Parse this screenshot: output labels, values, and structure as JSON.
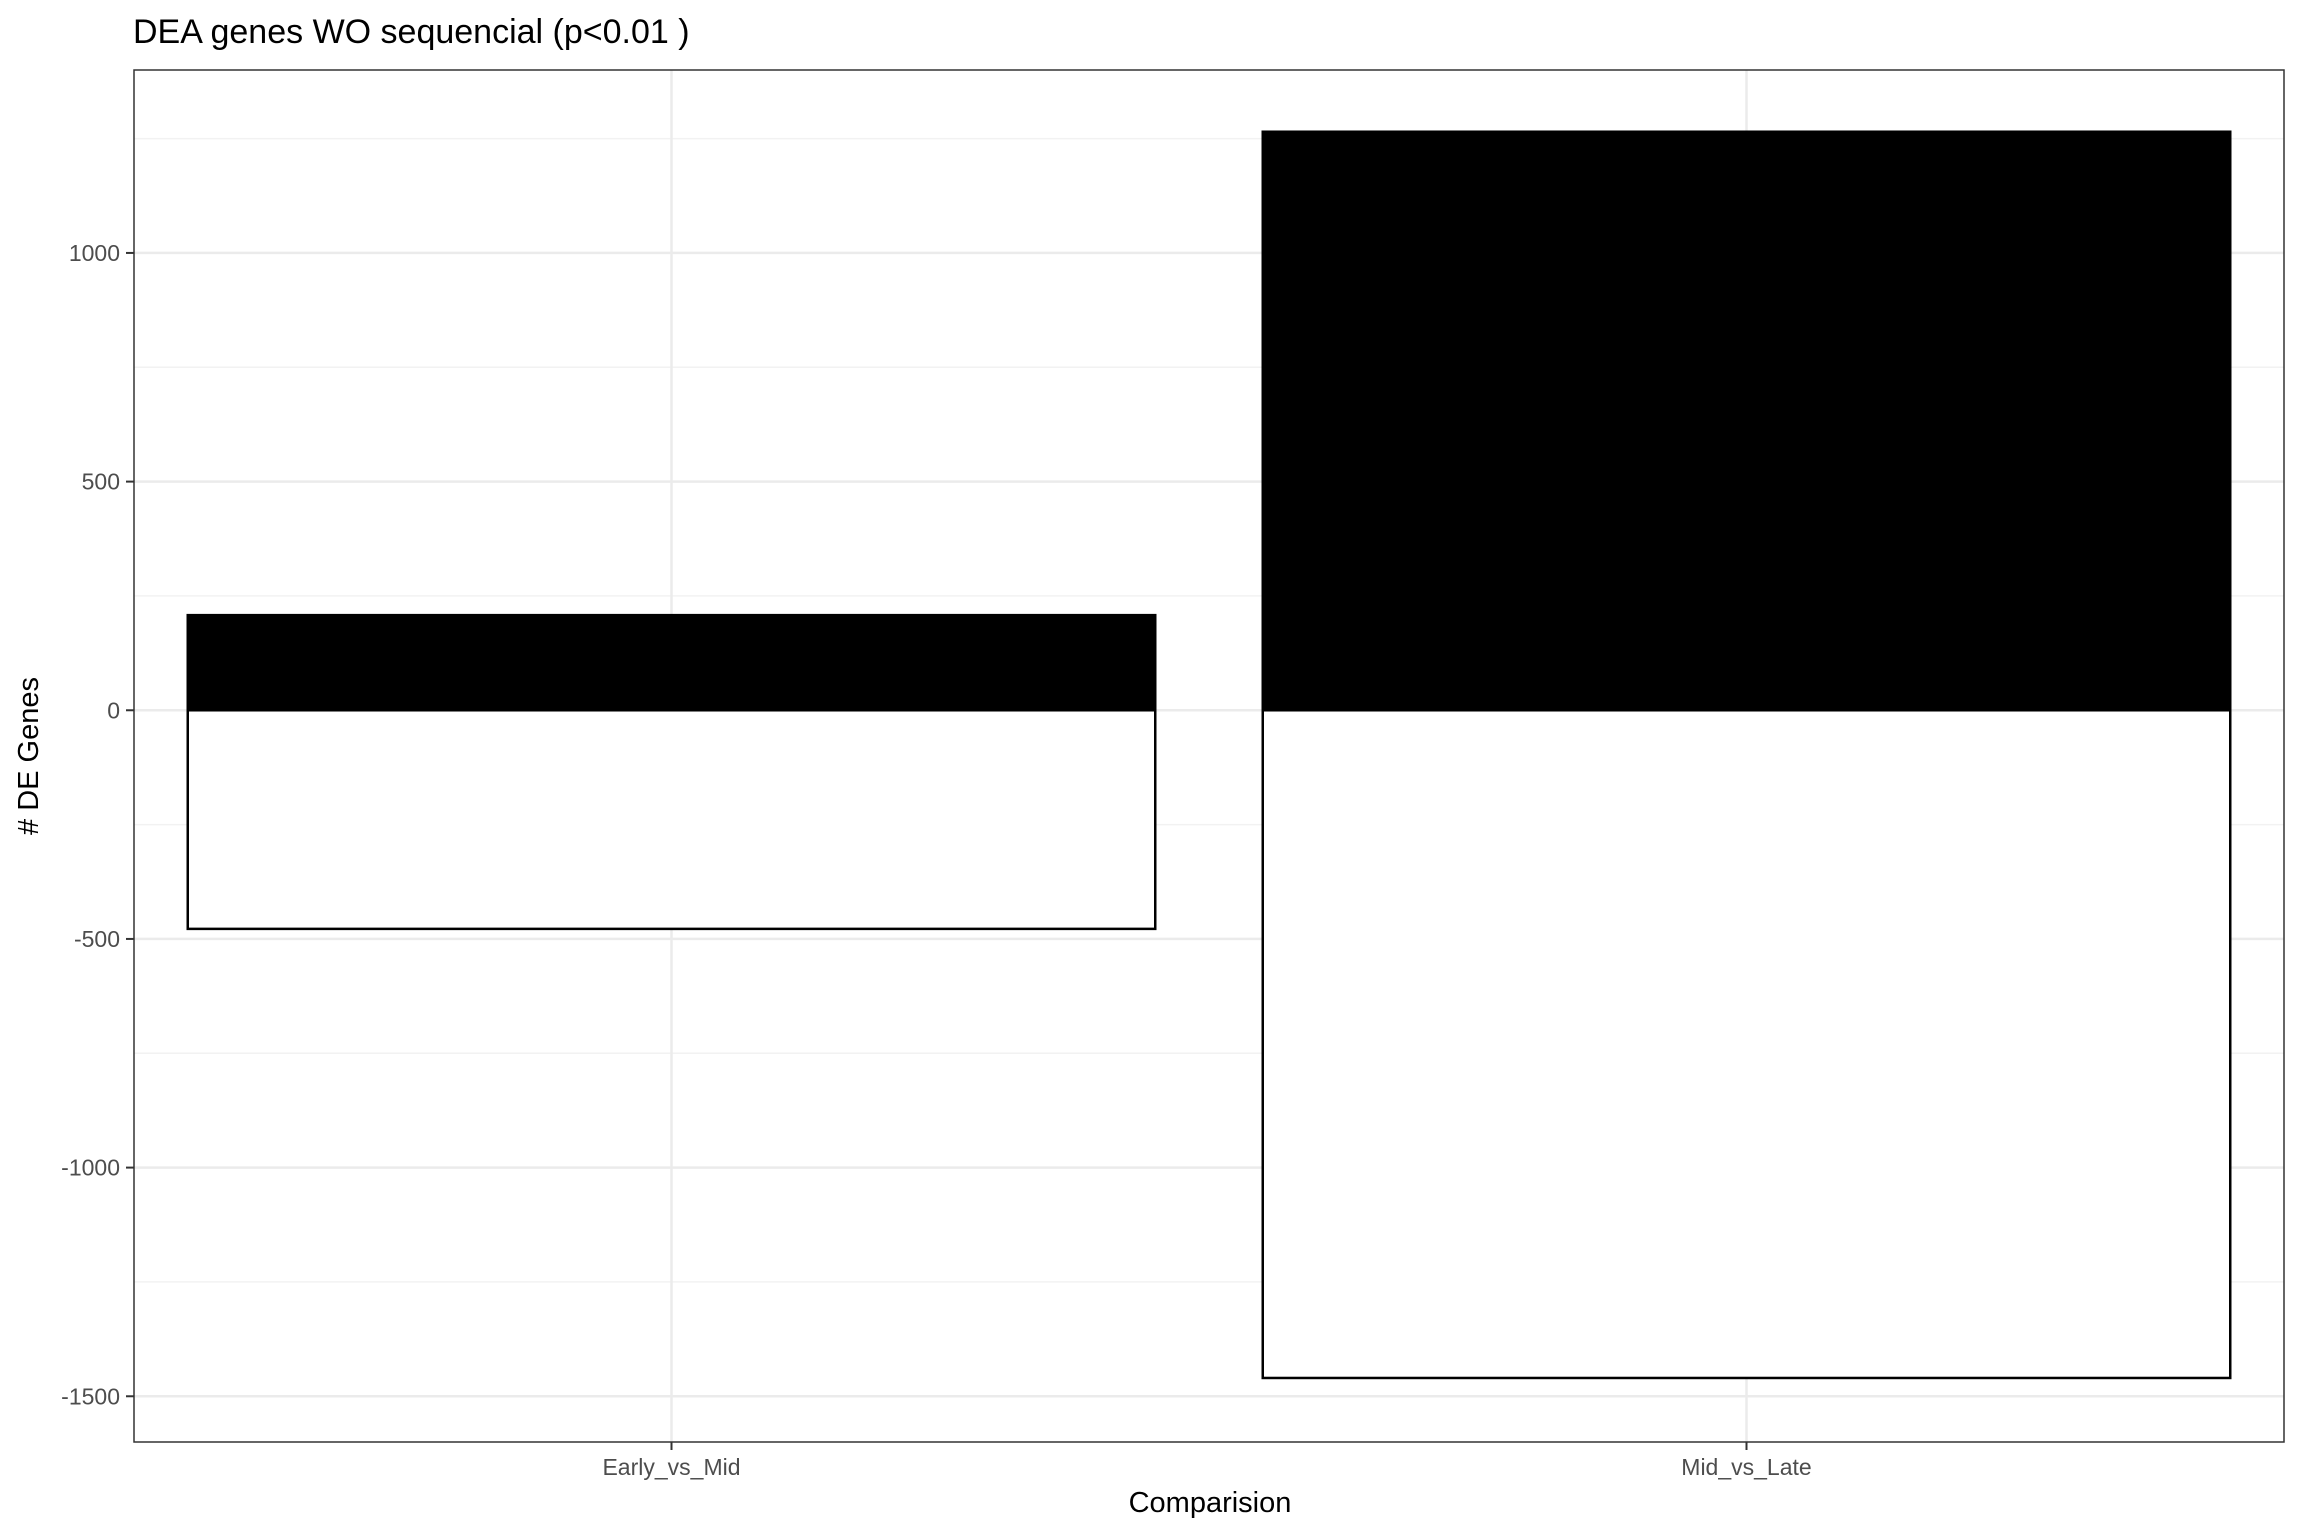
{
  "chart_data": {
    "type": "bar",
    "title": "DEA genes WO sequencial (p<0.01 )",
    "xlabel": "Comparision",
    "ylabel": "# DE Genes",
    "categories": [
      "Early_vs_Mid",
      "Mid_vs_Late"
    ],
    "series": [
      {
        "values": [
          208,
          1265
        ],
        "color": "#000000"
      },
      {
        "values": [
          -478,
          -1460
        ],
        "color": "#ffffff"
      }
    ],
    "ylim": [
      -1600,
      1400
    ],
    "yticks": [
      -1500,
      -1000,
      -500,
      0,
      500,
      1000
    ],
    "ytick_labels": [
      "-1500",
      "-1000",
      "-500",
      "0",
      "500",
      "1000"
    ],
    "grid": true,
    "legend": "none"
  }
}
